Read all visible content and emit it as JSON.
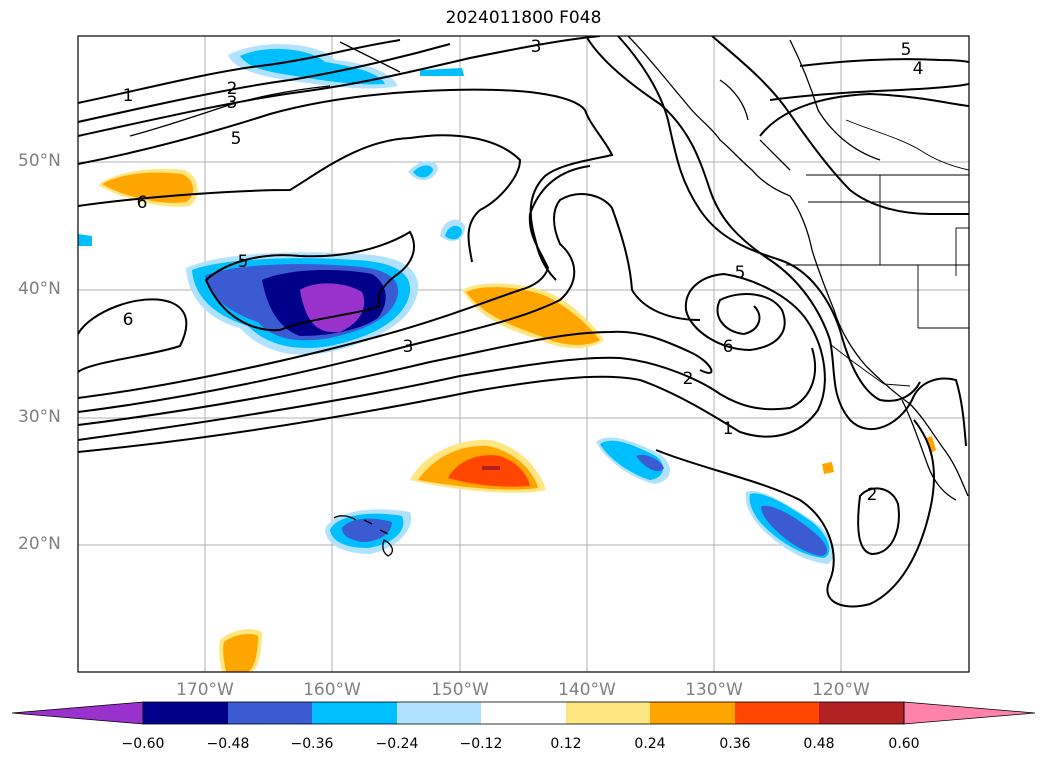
{
  "title": "2024011800 F048",
  "colors": {
    "neg_060": "#9932cc",
    "neg_048": "#00008b",
    "neg_036": "#3a5bd1",
    "neg_024": "#00bfff",
    "neg_012": "#b0e2ff",
    "zero": "#ffffff",
    "pos_012": "#ffe680",
    "pos_024": "#ffa500",
    "pos_036": "#ff4500",
    "pos_048": "#b22222",
    "pos_060": "#ff82ab"
  },
  "lon_labels": [
    "170°W",
    "160°W",
    "150°W",
    "140°W",
    "130°W",
    "120°W"
  ],
  "lat_labels": [
    "50°N",
    "40°N",
    "30°N",
    "20°N"
  ],
  "contour_labels": [
    "1",
    "2",
    "3",
    "5",
    "6",
    "5",
    "3",
    "6",
    "5",
    "6",
    "2",
    "1",
    "2",
    "5",
    "4",
    "3"
  ],
  "colorbar_ticks": [
    "−0.60",
    "−0.48",
    "−0.36",
    "−0.24",
    "−0.12",
    "0.12",
    "0.24",
    "0.36",
    "0.48",
    "0.60"
  ]
}
